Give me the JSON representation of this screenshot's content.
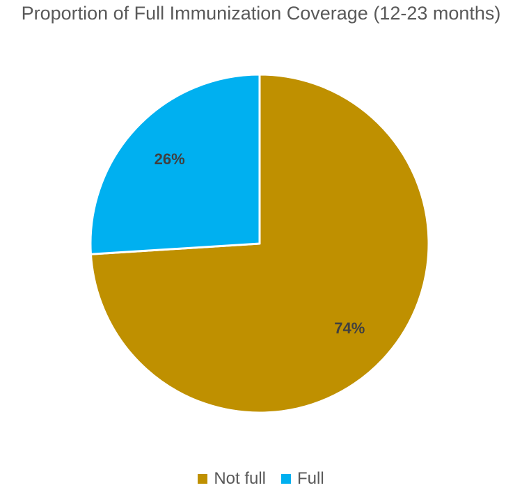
{
  "chart_data": {
    "type": "pie",
    "title": "Proportion of Full Immunization Coverage (12-23 months)",
    "categories": [
      "Not full",
      "Full"
    ],
    "values": [
      74,
      26
    ],
    "data_labels": [
      "74%",
      "26%"
    ],
    "colors": [
      "#BF9000",
      "#00B0F0"
    ],
    "legend_position": "bottom"
  }
}
